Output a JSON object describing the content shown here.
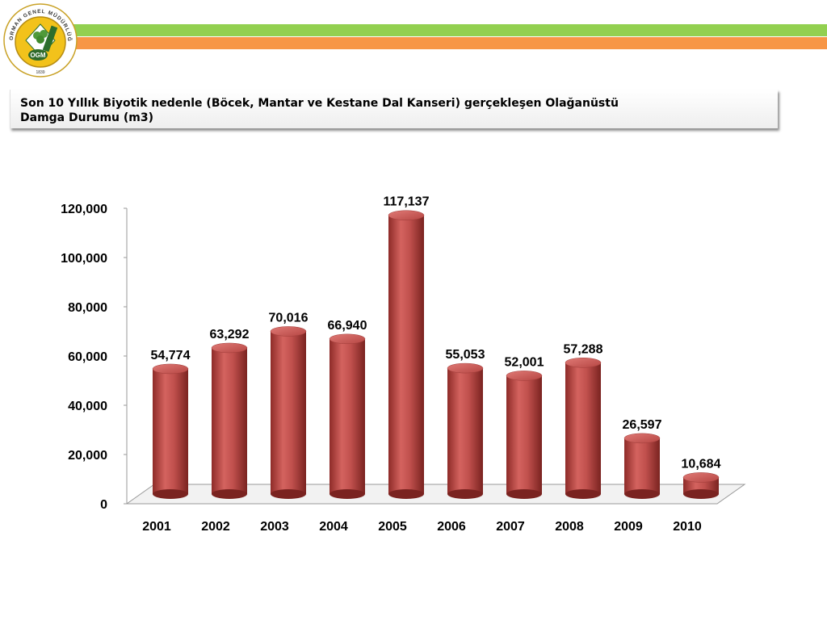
{
  "header": {
    "logo_text": "ORMAN GENEL MÜDÜRLÜĞÜ",
    "logo_abbr": "OGM",
    "logo_year": "1839"
  },
  "title": {
    "line1": "Son 10 Yıllık Biyotik nedenle (Böcek, Mantar ve Kestane Dal Kanseri) gerçekleşen Olağanüstü",
    "line2": "Damga  Durumu (m3)"
  },
  "colors": {
    "green_stripe": "#92d050",
    "orange_stripe": "#f79646",
    "bar": "#c0504d"
  },
  "chart_data": {
    "type": "bar",
    "categories": [
      "2001",
      "2002",
      "2003",
      "2004",
      "2005",
      "2006",
      "2007",
      "2008",
      "2009",
      "2010"
    ],
    "values": [
      54774,
      63292,
      70016,
      66940,
      117137,
      55053,
      52001,
      57288,
      26597,
      10684
    ],
    "value_labels": [
      "54,774",
      "63,292",
      "70,016",
      "66,940",
      "117,137",
      "55,053",
      "52,001",
      "57,288",
      "26,597",
      "10,684"
    ],
    "yticks": [
      0,
      20000,
      40000,
      60000,
      80000,
      100000,
      120000
    ],
    "ytick_labels": [
      "0",
      "20,000",
      "40,000",
      "60,000",
      "80,000",
      "100,000",
      "120,000"
    ],
    "ylim": [
      0,
      120000
    ],
    "grid": false,
    "legend": "none",
    "style": "3d-cylinder"
  }
}
